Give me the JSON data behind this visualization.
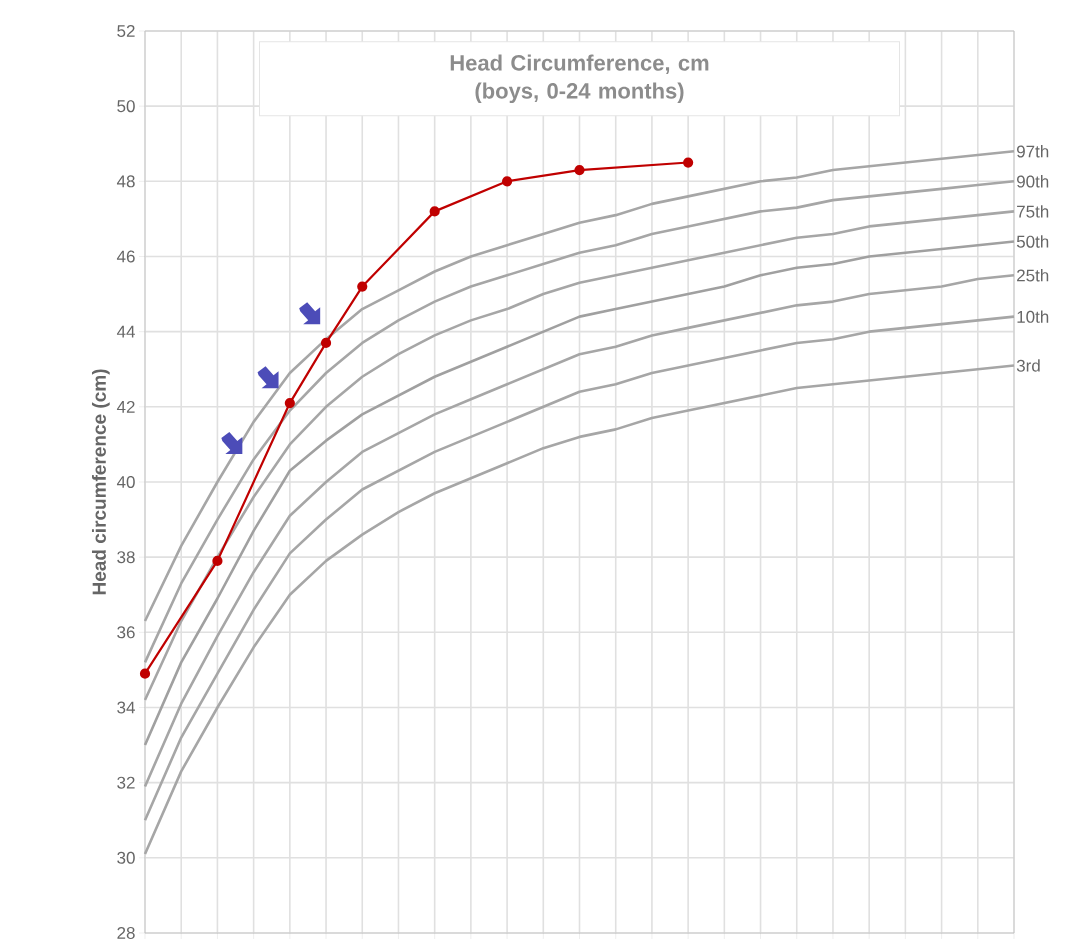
{
  "chart_data": {
    "type": "line",
    "title": "Head Circumference, cm\n(boys, 0-24 months)",
    "ylabel": "Head circumference (cm)",
    "categories": [
      null,
      null,
      null,
      null,
      null,
      null,
      null,
      null,
      null,
      null,
      null,
      null,
      null,
      null,
      null,
      null,
      null,
      null,
      null,
      null,
      null,
      null,
      null,
      null,
      null
    ],
    "ylim": [
      28,
      52
    ],
    "yticks": [
      28,
      30,
      32,
      34,
      36,
      38,
      40,
      42,
      44,
      46,
      48,
      50,
      52
    ],
    "tick_labels": "y",
    "grid": true,
    "series": [
      {
        "name": "97th",
        "color": "#a6a6a6",
        "marker": "none",
        "values": [
          36.3,
          38.3,
          40.0,
          41.6,
          42.9,
          43.8,
          44.6,
          45.1,
          45.6,
          46.0,
          46.3,
          46.6,
          46.9,
          47.1,
          47.4,
          47.6,
          47.8,
          48.0,
          48.1,
          48.3,
          48.4,
          48.5,
          48.6,
          48.7,
          48.8
        ]
      },
      {
        "name": "90th",
        "color": "#a6a6a6",
        "marker": "none",
        "values": [
          35.2,
          37.3,
          39.0,
          40.6,
          41.9,
          42.9,
          43.7,
          44.3,
          44.8,
          45.2,
          45.5,
          45.8,
          46.1,
          46.3,
          46.6,
          46.8,
          47.0,
          47.2,
          47.3,
          47.5,
          47.6,
          47.7,
          47.8,
          47.9,
          48.0
        ]
      },
      {
        "name": "75th",
        "color": "#a6a6a6",
        "marker": "none",
        "values": [
          34.2,
          36.3,
          38.0,
          39.6,
          41.0,
          42.0,
          42.8,
          43.4,
          43.9,
          44.3,
          44.6,
          45.0,
          45.3,
          45.5,
          45.7,
          45.9,
          46.1,
          46.3,
          46.5,
          46.6,
          46.8,
          46.9,
          47.0,
          47.1,
          47.2
        ]
      },
      {
        "name": "50th",
        "color": "#a0a0a0",
        "marker": "none",
        "values": [
          33.0,
          35.2,
          36.9,
          38.7,
          40.3,
          41.1,
          41.8,
          42.3,
          42.8,
          43.2,
          43.6,
          44.0,
          44.4,
          44.6,
          44.8,
          45.0,
          45.2,
          45.5,
          45.7,
          45.8,
          46.0,
          46.1,
          46.2,
          46.3,
          46.4
        ]
      },
      {
        "name": "25th",
        "color": "#a6a6a6",
        "marker": "none",
        "values": [
          31.9,
          34.1,
          35.9,
          37.6,
          39.1,
          40.0,
          40.8,
          41.3,
          41.8,
          42.2,
          42.6,
          43.0,
          43.4,
          43.6,
          43.9,
          44.1,
          44.3,
          44.5,
          44.7,
          44.8,
          45.0,
          45.1,
          45.2,
          45.4,
          45.5
        ]
      },
      {
        "name": "10th",
        "color": "#a6a6a6",
        "marker": "none",
        "values": [
          31.0,
          33.2,
          34.9,
          36.6,
          38.1,
          39.0,
          39.8,
          40.3,
          40.8,
          41.2,
          41.6,
          42.0,
          42.4,
          42.6,
          42.9,
          43.1,
          43.3,
          43.5,
          43.7,
          43.8,
          44.0,
          44.1,
          44.2,
          44.3,
          44.4
        ]
      },
      {
        "name": "3rd",
        "color": "#a6a6a6",
        "marker": "none",
        "values": [
          30.1,
          32.3,
          34.0,
          35.6,
          37.0,
          37.9,
          38.6,
          39.2,
          39.7,
          40.1,
          40.5,
          40.9,
          41.2,
          41.4,
          41.7,
          41.9,
          42.1,
          42.3,
          42.5,
          42.6,
          42.7,
          42.8,
          42.9,
          43.0,
          43.1
        ]
      },
      {
        "color": "#c00000",
        "marker": "circle",
        "values": [
          34.9,
          null,
          37.9,
          null,
          42.1,
          43.7,
          45.2,
          null,
          47.2,
          null,
          48.0,
          null,
          48.3,
          null,
          null,
          48.5,
          null,
          null,
          null,
          null,
          null,
          null,
          null,
          null,
          null
        ]
      }
    ]
  }
}
